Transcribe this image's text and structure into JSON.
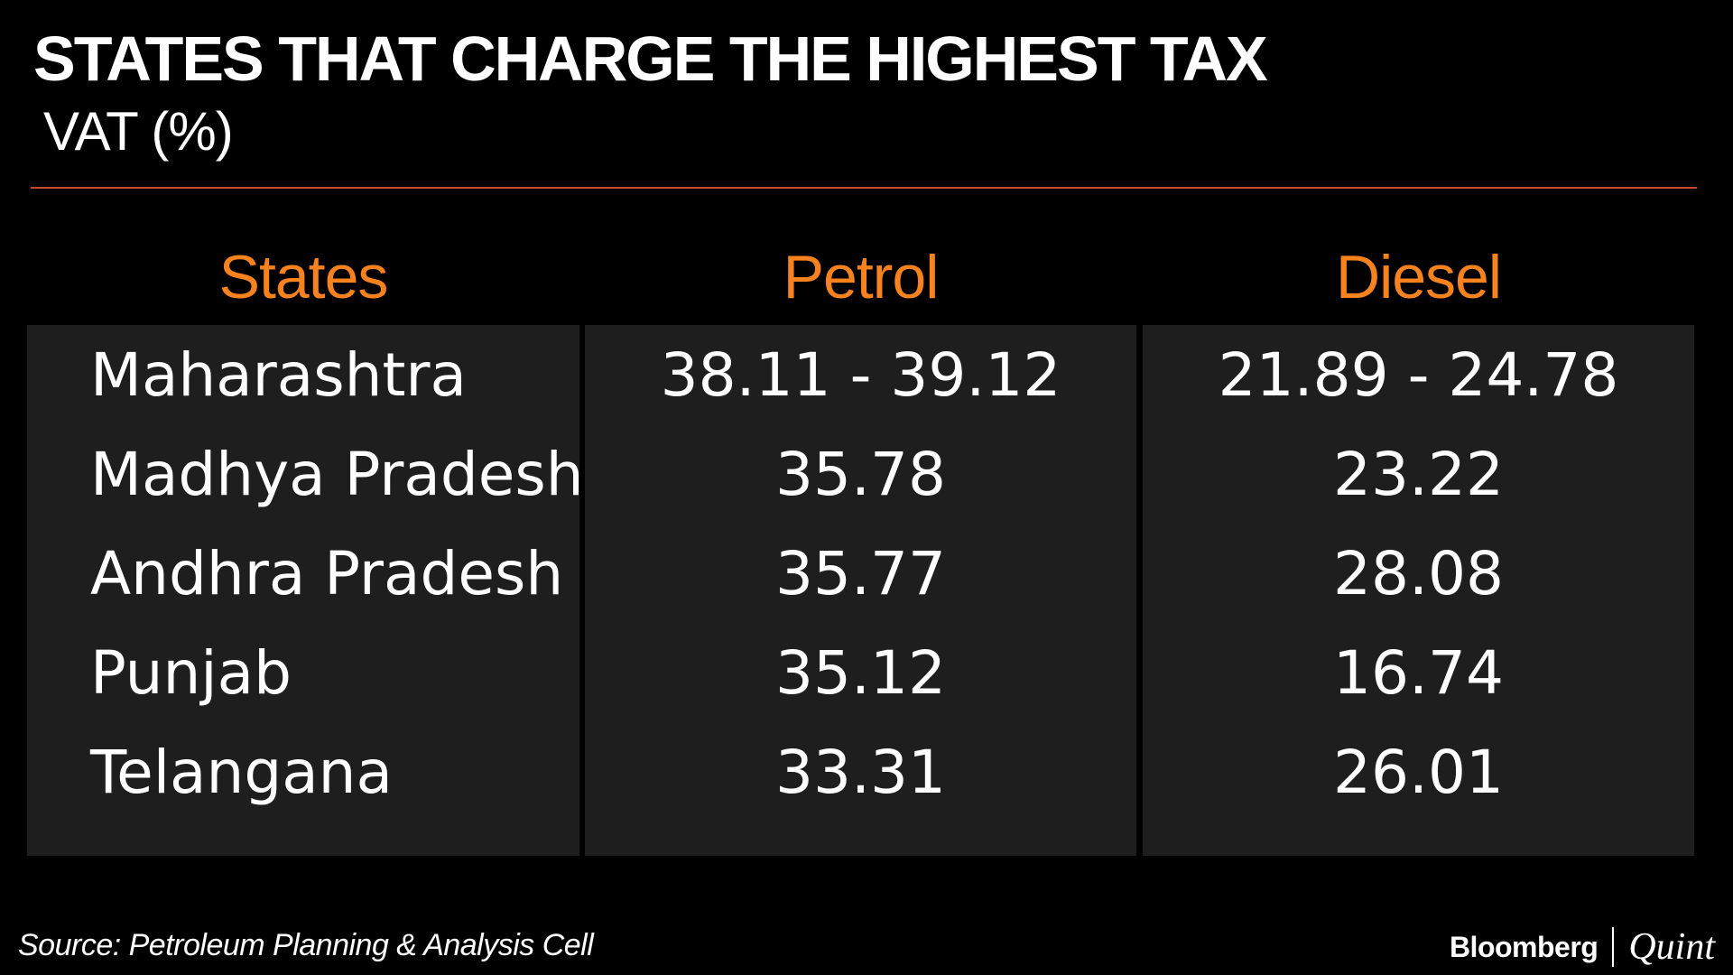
{
  "header": {
    "title": "STATES THAT CHARGE THE HIGHEST TAX",
    "subtitle": "VAT (%)"
  },
  "chart_data": {
    "type": "table",
    "title": "STATES THAT CHARGE THE HIGHEST TAX",
    "subtitle": "VAT (%)",
    "columns": [
      "States",
      "Petrol",
      "Diesel"
    ],
    "rows": [
      [
        "Maharashtra",
        "38.11 - 39.12",
        "21.89 - 24.78"
      ],
      [
        "Madhya Pradesh",
        "35.78",
        "23.22"
      ],
      [
        "Andhra Pradesh",
        "35.77",
        "28.08"
      ],
      [
        "Punjab",
        "35.12",
        "16.74"
      ],
      [
        "Telangana",
        "33.31",
        "26.01"
      ]
    ]
  },
  "footer": {
    "source": "Source: Petroleum Planning & Analysis Cell",
    "brand_left": "Bloomberg",
    "brand_right": "Quint"
  },
  "colors": {
    "background": "#000000",
    "accent": "#f7821e",
    "rule": "#c5482a",
    "panel": "#1e1e1e",
    "text": "#ffffff"
  }
}
